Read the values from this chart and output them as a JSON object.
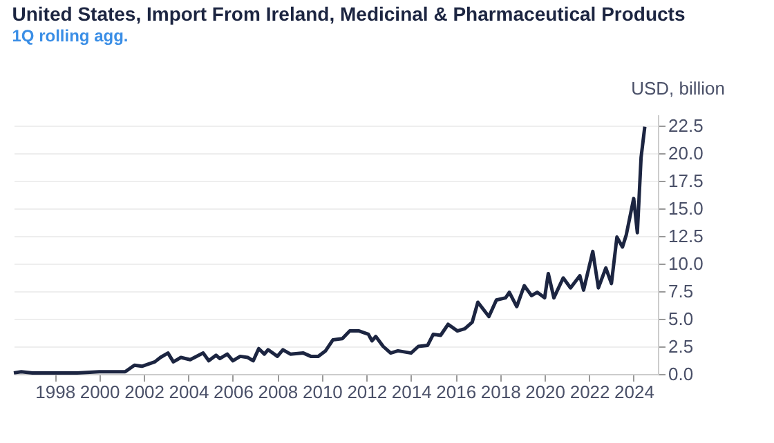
{
  "chart_data": {
    "type": "line",
    "title": "United States, Import From Ireland, Medicinal & Pharmaceutical Products",
    "subtitle": "1Q rolling agg.",
    "ylabel": "USD, billion",
    "x": [
      "1996-03",
      "1996-07",
      "1997-01",
      "1999-01",
      "2000-01",
      "2001-03",
      "2001-08",
      "2001-12",
      "2002-07",
      "2002-10",
      "2003-02",
      "2003-05",
      "2003-09",
      "2004-02",
      "2004-09",
      "2004-12",
      "2005-04",
      "2005-06",
      "2005-10",
      "2006-01",
      "2006-05",
      "2006-09",
      "2006-12",
      "2007-03",
      "2007-06",
      "2007-08",
      "2008-01",
      "2008-04",
      "2008-08",
      "2009-03",
      "2009-07",
      "2009-11",
      "2010-03",
      "2010-07",
      "2010-12",
      "2011-04",
      "2011-09",
      "2012-02",
      "2012-04",
      "2012-06",
      "2012-10",
      "2013-02",
      "2013-06",
      "2014-01",
      "2014-05",
      "2014-10",
      "2015-01",
      "2015-05",
      "2015-09",
      "2016-02",
      "2016-06",
      "2016-10",
      "2017-01",
      "2017-07",
      "2017-11",
      "2018-04",
      "2018-06",
      "2018-10",
      "2019-02",
      "2019-06",
      "2019-09",
      "2020-01",
      "2020-03",
      "2020-06",
      "2020-11",
      "2021-03",
      "2021-08",
      "2021-10",
      "2022-03",
      "2022-06",
      "2022-10",
      "2023-01",
      "2023-04",
      "2023-07",
      "2023-09",
      "2024-01",
      "2024-03",
      "2024-05",
      "2024-07"
    ],
    "series": [
      {
        "color": "#1c2541",
        "values": [
          0.1,
          0.2,
          0.1,
          0.1,
          0.2,
          0.2,
          0.8,
          0.7,
          1.1,
          1.5,
          1.9,
          1.1,
          1.5,
          1.3,
          1.9,
          1.2,
          1.7,
          1.4,
          1.8,
          1.2,
          1.6,
          1.5,
          1.2,
          2.3,
          1.8,
          2.2,
          1.6,
          2.2,
          1.8,
          1.9,
          1.6,
          1.6,
          2.1,
          3.1,
          3.2,
          3.9,
          3.9,
          3.6,
          3.0,
          3.4,
          2.5,
          1.9,
          2.1,
          1.9,
          2.5,
          2.6,
          3.6,
          3.5,
          4.5,
          3.9,
          4.1,
          4.7,
          6.5,
          5.2,
          6.7,
          6.9,
          7.4,
          6.1,
          8.0,
          7.1,
          7.4,
          6.9,
          9.1,
          6.9,
          8.7,
          7.8,
          8.9,
          7.6,
          11.1,
          7.8,
          9.6,
          8.2,
          12.4,
          11.5,
          12.6,
          15.9,
          12.8,
          19.6,
          22.4
        ]
      }
    ],
    "xlim": [
      "1996-03",
      "2025-02"
    ],
    "xticks": [
      "1998",
      "2000",
      "2002",
      "2004",
      "2006",
      "2008",
      "2010",
      "2012",
      "2014",
      "2016",
      "2018",
      "2020",
      "2022",
      "2024"
    ],
    "ylim": [
      0,
      23.5
    ],
    "yticks": [
      {
        "value": 0,
        "label": "0.0"
      },
      {
        "value": 2.5,
        "label": "2.5"
      },
      {
        "value": 5,
        "label": "5.0"
      },
      {
        "value": 7.5,
        "label": "7.5"
      },
      {
        "value": 10,
        "label": "10.0"
      },
      {
        "value": 12.5,
        "label": "12.5"
      },
      {
        "value": 15,
        "label": "15.0"
      },
      {
        "value": 17.5,
        "label": "17.5"
      },
      {
        "value": 20,
        "label": "20.0"
      },
      {
        "value": 22.5,
        "label": "22.5"
      }
    ],
    "grid": "y",
    "marker": "none",
    "line_style": "solid"
  }
}
